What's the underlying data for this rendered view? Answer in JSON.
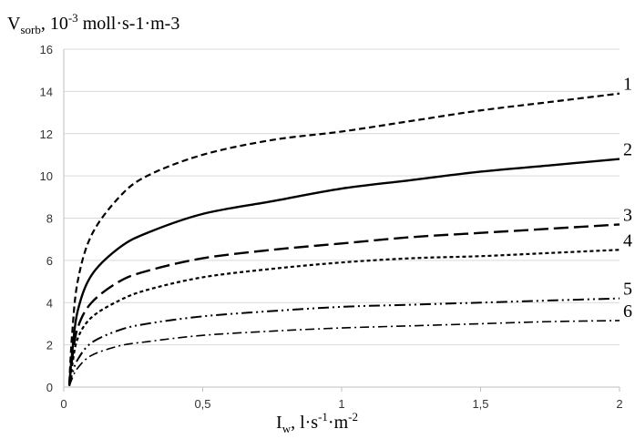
{
  "chart_data": {
    "type": "line",
    "ylabel": {
      "main": "V",
      "sub": "sorb",
      "tail": ", 10",
      "sup": "-3",
      "units": " moll·s-1·m-3"
    },
    "xlabel": {
      "main": "I",
      "sub": "w",
      "tail": ", l·s",
      "sup1": "-1",
      "mid": "·m",
      "sup2": "-2"
    },
    "xlim": [
      0,
      2
    ],
    "ylim": [
      0,
      16
    ],
    "x_ticks": [
      0,
      0.5,
      1,
      1.5,
      2
    ],
    "x_tick_labels": [
      "0",
      "0,5",
      "1",
      "1,5",
      "2"
    ],
    "y_ticks": [
      0,
      2,
      4,
      6,
      8,
      10,
      12,
      14,
      16
    ],
    "y_tick_labels": [
      "0",
      "2",
      "4",
      "6",
      "8",
      "10",
      "12",
      "14",
      "16"
    ],
    "grid": "horizontal",
    "x": [
      0.02,
      0.03,
      0.05,
      0.1,
      0.2,
      0.3,
      0.5,
      0.75,
      1.0,
      1.25,
      1.5,
      1.75,
      2.0
    ],
    "series": [
      {
        "name": "1",
        "style": "short-dash",
        "values": [
          0.2,
          2.5,
          5.0,
          7.2,
          9.0,
          10.0,
          11.0,
          11.7,
          12.1,
          12.6,
          13.1,
          13.5,
          13.9
        ]
      },
      {
        "name": "2",
        "style": "solid",
        "values": [
          0.1,
          1.6,
          3.6,
          5.3,
          6.6,
          7.3,
          8.2,
          8.8,
          9.4,
          9.8,
          10.2,
          10.5,
          10.8
        ]
      },
      {
        "name": "3",
        "style": "long-dash",
        "values": [
          0.1,
          1.3,
          2.8,
          4.0,
          5.0,
          5.5,
          6.1,
          6.5,
          6.8,
          7.1,
          7.3,
          7.5,
          7.7
        ]
      },
      {
        "name": "4",
        "style": "dots",
        "values": [
          0.1,
          1.0,
          2.3,
          3.3,
          4.1,
          4.6,
          5.2,
          5.6,
          5.9,
          6.1,
          6.2,
          6.35,
          6.5
        ]
      },
      {
        "name": "5",
        "style": "dash-dot-dot",
        "values": [
          0.05,
          0.6,
          1.3,
          2.1,
          2.7,
          3.0,
          3.35,
          3.6,
          3.8,
          3.9,
          4.0,
          4.1,
          4.2
        ]
      },
      {
        "name": "6",
        "style": "dash-dot",
        "values": [
          0.05,
          0.4,
          0.9,
          1.5,
          1.95,
          2.15,
          2.45,
          2.65,
          2.8,
          2.9,
          3.0,
          3.1,
          3.15
        ]
      }
    ]
  }
}
